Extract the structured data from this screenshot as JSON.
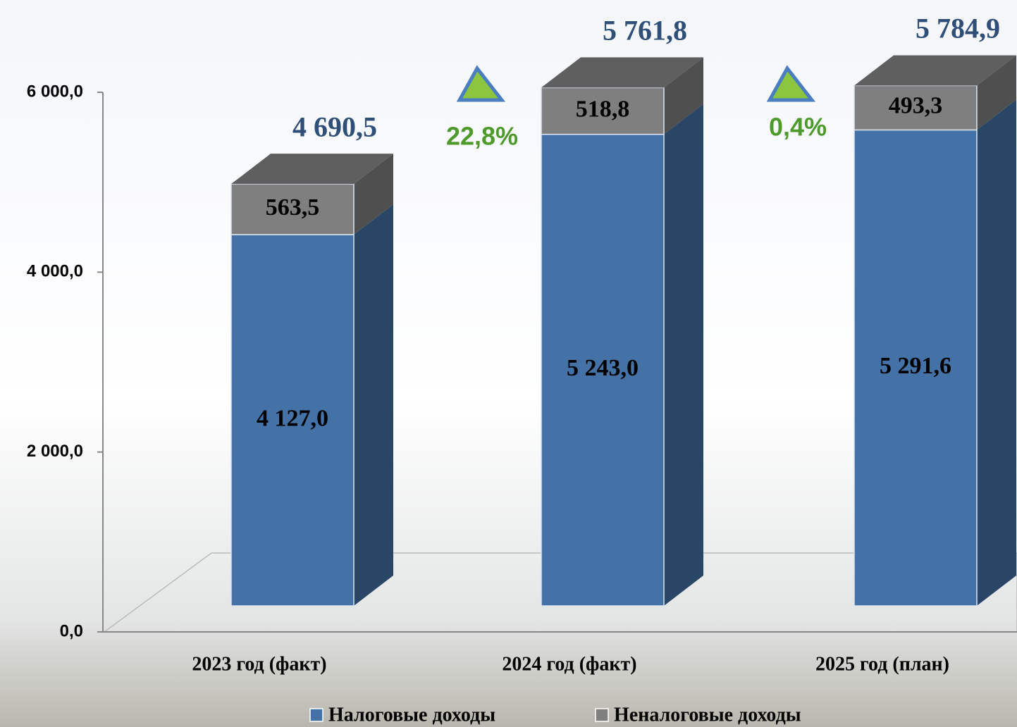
{
  "chart_data": {
    "type": "bar3d-stacked",
    "categories": [
      "2023 год (факт)",
      "2024 год (факт)",
      "2025 год (план)"
    ],
    "series": [
      {
        "name": "Налоговые доходы",
        "color": "#4471a6",
        "values": [
          4127.0,
          5243.0,
          5291.6
        ],
        "value_labels": [
          "4 127,0",
          "5 243,0",
          "5 291,6"
        ]
      },
      {
        "name": "Неналоговые доходы",
        "color": "#7f7f7f",
        "values": [
          563.5,
          518.8,
          493.3
        ],
        "value_labels": [
          "563,5",
          "518,8",
          "493,3"
        ]
      }
    ],
    "totals": {
      "values": [
        4690.5,
        5761.8,
        5784.9
      ],
      "value_labels": [
        "4 690,5",
        "5 761,8",
        "5 784,9"
      ]
    },
    "annotations": [
      "22,8%",
      "0,4%"
    ],
    "ylim": [
      0,
      6000
    ],
    "yticks": [
      {
        "value": 0,
        "label": "0,0"
      },
      {
        "value": 2000,
        "label": "2 000,0"
      },
      {
        "value": 4000,
        "label": "4 000,0"
      },
      {
        "value": 6000,
        "label": "6 000,0"
      }
    ]
  }
}
